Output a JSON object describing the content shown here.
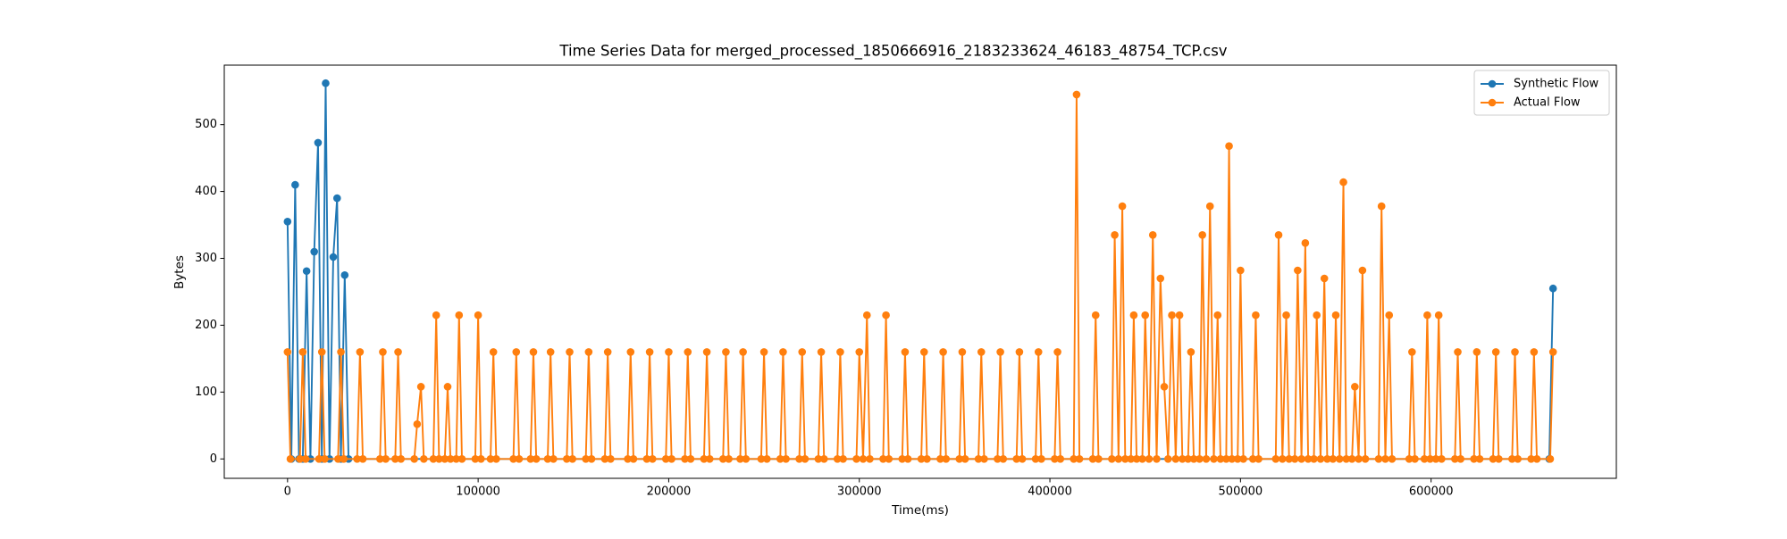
{
  "chart_data": {
    "type": "line",
    "title": "Time Series Data for merged_processed_1850666916_2183233624_46183_48754_TCP.csv",
    "xlabel": "Time(ms)",
    "ylabel": "Bytes",
    "xlim": [
      -33200,
      697200
    ],
    "ylim": [
      -29,
      589
    ],
    "xticks": [
      0,
      100000,
      200000,
      300000,
      400000,
      500000,
      600000
    ],
    "yticks": [
      0,
      100,
      200,
      300,
      400,
      500
    ],
    "grid": false,
    "legend": "upper right",
    "series": [
      {
        "name": "Synthetic Flow",
        "color": "#1f77b4",
        "x": [
          0,
          2000,
          4000,
          6000,
          8000,
          10000,
          12000,
          14000,
          16000,
          18000,
          20000,
          22000,
          24000,
          26000,
          28000,
          30000,
          32000,
          662000,
          664000
        ],
        "values": [
          355,
          0,
          410,
          0,
          0,
          281,
          0,
          310,
          473,
          0,
          562,
          0,
          302,
          390,
          0,
          275,
          0,
          0,
          255
        ]
      },
      {
        "name": "Actual Flow",
        "color": "#ff7f0e",
        "x": [
          0,
          1500,
          6500,
          8000,
          9500,
          16500,
          18000,
          19500,
          26500,
          28000,
          29500,
          36500,
          38000,
          39500,
          48500,
          50000,
          51500,
          56500,
          58000,
          59500,
          66500,
          68000,
          70000,
          71500,
          76500,
          78000,
          79500,
          82500,
          84000,
          85500,
          88500,
          90000,
          91500,
          98500,
          100000,
          101500,
          106500,
          108000,
          109500,
          118500,
          120000,
          121500,
          127500,
          129000,
          130500,
          136500,
          138000,
          139500,
          146500,
          148000,
          149500,
          156500,
          158000,
          159500,
          166500,
          168000,
          169500,
          178500,
          180000,
          181500,
          188500,
          190000,
          191500,
          198500,
          200000,
          201500,
          208500,
          210000,
          211500,
          218500,
          220000,
          221500,
          228500,
          230000,
          231500,
          237500,
          239000,
          240500,
          248500,
          250000,
          251500,
          258500,
          260000,
          261500,
          268500,
          270000,
          271500,
          278500,
          280000,
          281500,
          288500,
          290000,
          291500,
          298500,
          300000,
          302000,
          304000,
          305500,
          312500,
          314000,
          315500,
          322500,
          324000,
          325500,
          332500,
          334000,
          335500,
          342500,
          344000,
          345500,
          352500,
          354000,
          355500,
          362500,
          364000,
          365500,
          372500,
          374000,
          375500,
          382500,
          384000,
          385500,
          392500,
          394000,
          395500,
          402500,
          404000,
          405500,
          412500,
          414000,
          415500,
          422500,
          424000,
          425500,
          432500,
          434000,
          436000,
          438000,
          439500,
          442500,
          444000,
          445500,
          448500,
          450000,
          452000,
          454000,
          456000,
          458000,
          460000,
          462000,
          464000,
          466000,
          468000,
          469500,
          472500,
          474000,
          475500,
          478500,
          480000,
          482000,
          484000,
          486000,
          488000,
          489500,
          492500,
          494000,
          495500,
          498500,
          500000,
          501500,
          506500,
          508000,
          509500,
          518500,
          520000,
          522000,
          524000,
          525500,
          528500,
          530000,
          532000,
          534000,
          535500,
          538500,
          540000,
          542000,
          544000,
          545500,
          548500,
          550000,
          552000,
          554000,
          555500,
          558500,
          560000,
          562000,
          564000,
          565500,
          572500,
          574000,
          576000,
          578000,
          579500,
          588500,
          590000,
          591500,
          596500,
          598000,
          599500,
          602500,
          604000,
          605500,
          612500,
          614000,
          615500,
          622500,
          624000,
          625500,
          632500,
          634000,
          635500,
          642500,
          644000,
          645500,
          652500,
          654000,
          655500,
          662500,
          664000
        ],
        "values": [
          160,
          0,
          0,
          160,
          0,
          0,
          160,
          0,
          0,
          160,
          0,
          0,
          160,
          0,
          0,
          160,
          0,
          0,
          160,
          0,
          0,
          52,
          108,
          0,
          0,
          215,
          0,
          0,
          108,
          0,
          0,
          215,
          0,
          0,
          215,
          0,
          0,
          160,
          0,
          0,
          160,
          0,
          0,
          160,
          0,
          0,
          160,
          0,
          0,
          160,
          0,
          0,
          160,
          0,
          0,
          160,
          0,
          0,
          160,
          0,
          0,
          160,
          0,
          0,
          160,
          0,
          0,
          160,
          0,
          0,
          160,
          0,
          0,
          160,
          0,
          0,
          160,
          0,
          0,
          160,
          0,
          0,
          160,
          0,
          0,
          160,
          0,
          0,
          160,
          0,
          0,
          160,
          0,
          0,
          160,
          0,
          215,
          0,
          0,
          215,
          0,
          0,
          160,
          0,
          0,
          160,
          0,
          0,
          160,
          0,
          0,
          160,
          0,
          0,
          160,
          0,
          0,
          160,
          0,
          0,
          160,
          0,
          0,
          160,
          0,
          0,
          160,
          0,
          0,
          545,
          0,
          0,
          215,
          0,
          0,
          335,
          0,
          378,
          0,
          0,
          215,
          0,
          0,
          215,
          0,
          335,
          0,
          270,
          108,
          0,
          215,
          0,
          215,
          0,
          0,
          160,
          0,
          0,
          335,
          0,
          378,
          0,
          215,
          0,
          0,
          468,
          0,
          0,
          282,
          0,
          0,
          215,
          0,
          0,
          335,
          0,
          215,
          0,
          0,
          282,
          0,
          323,
          0,
          0,
          215,
          0,
          270,
          0,
          0,
          215,
          0,
          414,
          0,
          0,
          108,
          0,
          282,
          0,
          0,
          378,
          0,
          215,
          0,
          0,
          160,
          0,
          0,
          215,
          0,
          0,
          215,
          0,
          0,
          160,
          0,
          0,
          160,
          0,
          0,
          160,
          0,
          0,
          160,
          0,
          0,
          160,
          0,
          0,
          160
        ]
      }
    ]
  }
}
